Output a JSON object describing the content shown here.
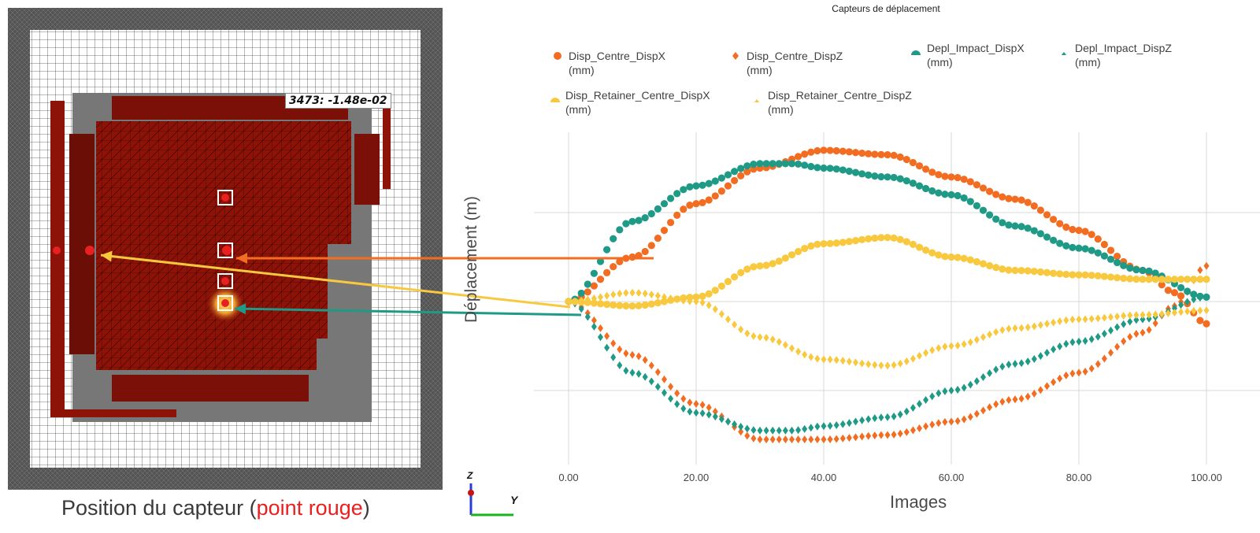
{
  "mesh_panel": {
    "probe_label": "3473: -1.48e-02",
    "caption_prefix": "Position du capteur (",
    "caption_highlight": "point rouge",
    "caption_suffix": ")",
    "axis_z": "Z",
    "axis_y": "Y"
  },
  "colors": {
    "orange": "#f26d21",
    "teal": "#1f9a87",
    "yellow": "#f8c93f",
    "mesh_red": "#8d1208",
    "sensor_red": "#e8201f"
  },
  "chart_data": {
    "type": "scatter",
    "title": "Capteurs de déplacement",
    "xlabel": "Images",
    "ylabel": "Déplacement (m)",
    "xlim": [
      0,
      100
    ],
    "ylim": [
      -2,
      2
    ],
    "xticks": [
      "0.00",
      "20.00",
      "40.00",
      "60.00",
      "80.00",
      "100.00"
    ],
    "grid": true,
    "legend_position": "top",
    "series": [
      {
        "name": "Disp_Centre_DispX\n(mm)",
        "color": "#f26d21",
        "marker": "circle",
        "x": [
          0,
          10,
          20,
          30,
          40,
          50,
          60,
          70,
          80,
          90,
          95,
          100
        ],
        "y": [
          0,
          0.5,
          1.1,
          1.5,
          1.7,
          1.65,
          1.4,
          1.15,
          0.8,
          0.35,
          0.1,
          -0.25
        ]
      },
      {
        "name": "Disp_Centre_DispZ\n(mm)",
        "color": "#f26d21",
        "marker": "diamond",
        "x": [
          0,
          10,
          20,
          30,
          40,
          50,
          60,
          70,
          80,
          90,
          95,
          100
        ],
        "y": [
          0,
          -0.6,
          -1.15,
          -1.55,
          -1.55,
          -1.5,
          -1.35,
          -1.1,
          -0.8,
          -0.35,
          -0.05,
          0.4
        ]
      },
      {
        "name": "Depl_Impact_DispX\n(mm)",
        "color": "#1f9a87",
        "marker": "circle",
        "x": [
          0,
          10,
          20,
          30,
          35,
          40,
          50,
          60,
          70,
          80,
          90,
          100
        ],
        "y": [
          0,
          0.9,
          1.3,
          1.55,
          1.55,
          1.5,
          1.4,
          1.2,
          0.85,
          0.6,
          0.35,
          0.05
        ]
      },
      {
        "name": "Depl_Impact_DispZ\n(mm)",
        "color": "#1f9a87",
        "marker": "diamond",
        "x": [
          0,
          10,
          20,
          30,
          35,
          40,
          50,
          60,
          70,
          80,
          90,
          100
        ],
        "y": [
          0,
          -0.8,
          -1.25,
          -1.45,
          -1.45,
          -1.4,
          -1.3,
          -1.0,
          -0.7,
          -0.45,
          -0.2,
          0.05
        ]
      },
      {
        "name": "Disp_Retainer_Centre_DispX\n(mm)",
        "color": "#f8c93f",
        "marker": "circle",
        "x": [
          0,
          10,
          20,
          30,
          40,
          50,
          60,
          70,
          80,
          90,
          100
        ],
        "y": [
          0,
          -0.05,
          0.05,
          0.4,
          0.65,
          0.72,
          0.5,
          0.35,
          0.3,
          0.25,
          0.25
        ]
      },
      {
        "name": "Disp_Retainer_Centre_DispZ\n(mm)",
        "color": "#f8c93f",
        "marker": "diamond",
        "x": [
          0,
          10,
          20,
          30,
          40,
          50,
          60,
          70,
          80,
          90,
          100
        ],
        "y": [
          0,
          0.1,
          0,
          -0.4,
          -0.65,
          -0.72,
          -0.5,
          -0.3,
          -0.2,
          -0.15,
          -0.1
        ]
      }
    ]
  }
}
